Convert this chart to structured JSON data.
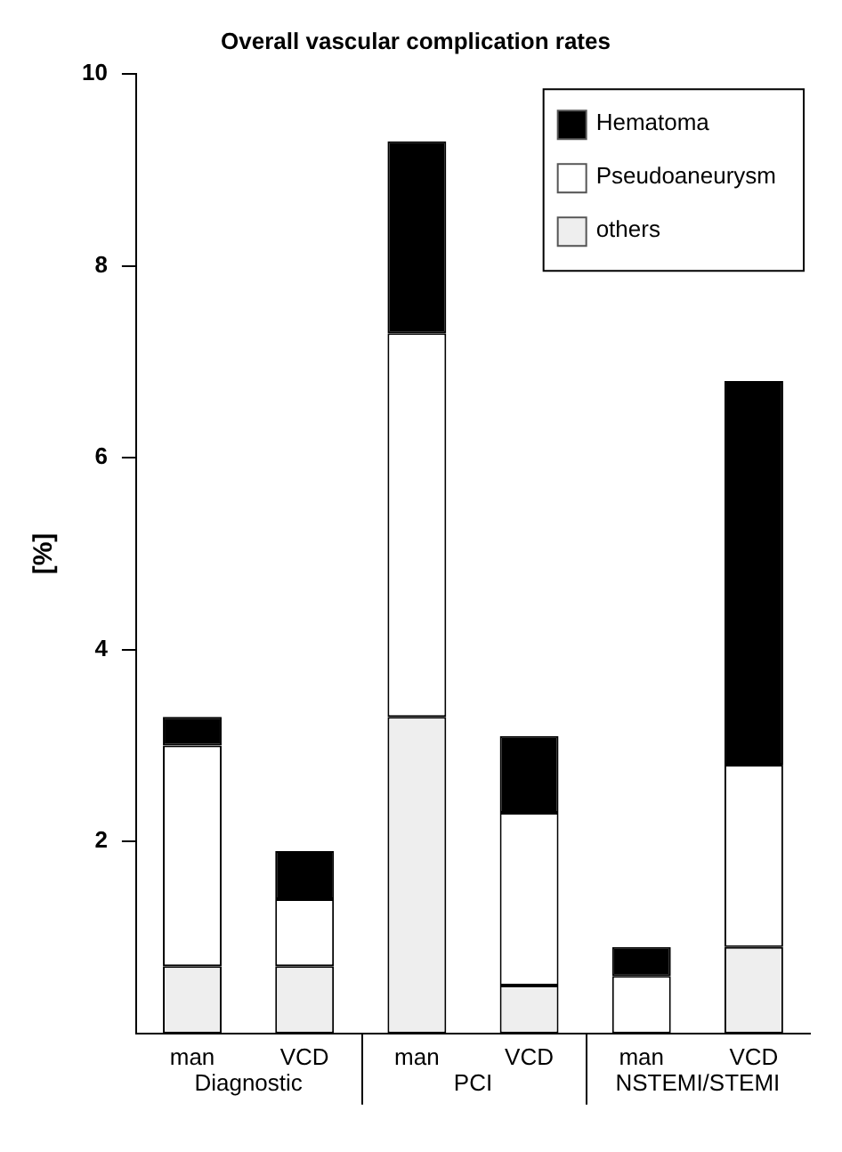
{
  "chart_data": {
    "type": "bar",
    "title": "Overall vascular complication rates",
    "ylabel": "[%]",
    "categories": [
      "man",
      "VCD",
      "man",
      "VCD",
      "man",
      "VCD"
    ],
    "annotations": [
      "Diagnostic",
      "PCI",
      "NSTEMI/STEMI"
    ],
    "stacked": true,
    "ylim": [
      0,
      10
    ],
    "yticks": [
      2,
      4,
      6,
      8,
      10
    ],
    "grid": false,
    "legend": "top right",
    "series": [
      {
        "name": "others",
        "color": "#eeeeee",
        "values": [
          0.7,
          0.7,
          3.3,
          0.5,
          0,
          0.9
        ]
      },
      {
        "name": "Pseudoaneurysm",
        "color": "#ffffff",
        "values": [
          2.3,
          0.7,
          4.0,
          1.8,
          0.6,
          1.9
        ]
      },
      {
        "name": "Hematoma",
        "color": "#000000",
        "values": [
          0.3,
          0.5,
          2.0,
          0.8,
          0.3,
          4.0
        ]
      }
    ]
  }
}
